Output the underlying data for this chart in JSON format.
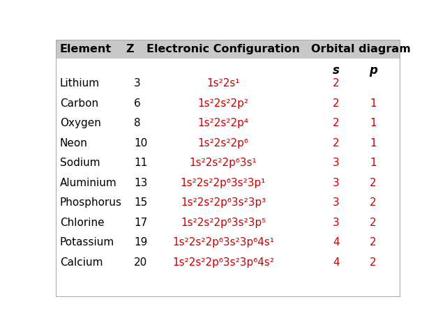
{
  "title_row": [
    "Element",
    "Z",
    "Electronic Configuration",
    "Orbital diagram"
  ],
  "rows": [
    {
      "element": "Lithium",
      "Z": "3",
      "config": "1s²2s¹",
      "s": "2",
      "p": ""
    },
    {
      "element": "Carbon",
      "Z": "6",
      "config": "1s²2s²2p²",
      "s": "2",
      "p": "1"
    },
    {
      "element": "Oxygen",
      "Z": "8",
      "config": "1s²2s²2p⁴",
      "s": "2",
      "p": "1"
    },
    {
      "element": "Neon",
      "Z": "10",
      "config": "1s²2s²2p⁶",
      "s": "2",
      "p": "1"
    },
    {
      "element": "Sodium",
      "Z": "11",
      "config": "1s²2s²2p⁶ 3s¹",
      "s": "3",
      "p": "1"
    },
    {
      "element": "Aluminium",
      "Z": "13",
      "config": "1s²2s²2p⁶ 3s²3p¹",
      "s": "3",
      "p": "2"
    },
    {
      "element": "Phosphorus",
      "Z": "15",
      "config": "1s²2s²2p⁶ 3s²3p³",
      "s": "3",
      "p": "2"
    },
    {
      "element": "Chlorine",
      "Z": "17",
      "config": "1s²2s²2p⁶ 3s²3p⁵",
      "s": "3",
      "p": "2"
    },
    {
      "element": "Potassium",
      "Z": "19",
      "config": "1s²2s²2p⁶ 3s²3p⁶ 4s¹",
      "s": "4",
      "p": "2"
    },
    {
      "element": "Calcium",
      "Z": "20",
      "config": "1s²2s²2p⁶ 3s²3p⁶ 4s²",
      "s": "4",
      "p": "2"
    }
  ],
  "header_bg": "#c8c8c8",
  "text_black": "#000000",
  "text_red": "#cc0000",
  "bg_color": "#ffffff",
  "border_color": "#aaaaaa",
  "header_fs": 11.5,
  "cell_fs": 11,
  "subhdr_fs": 12
}
